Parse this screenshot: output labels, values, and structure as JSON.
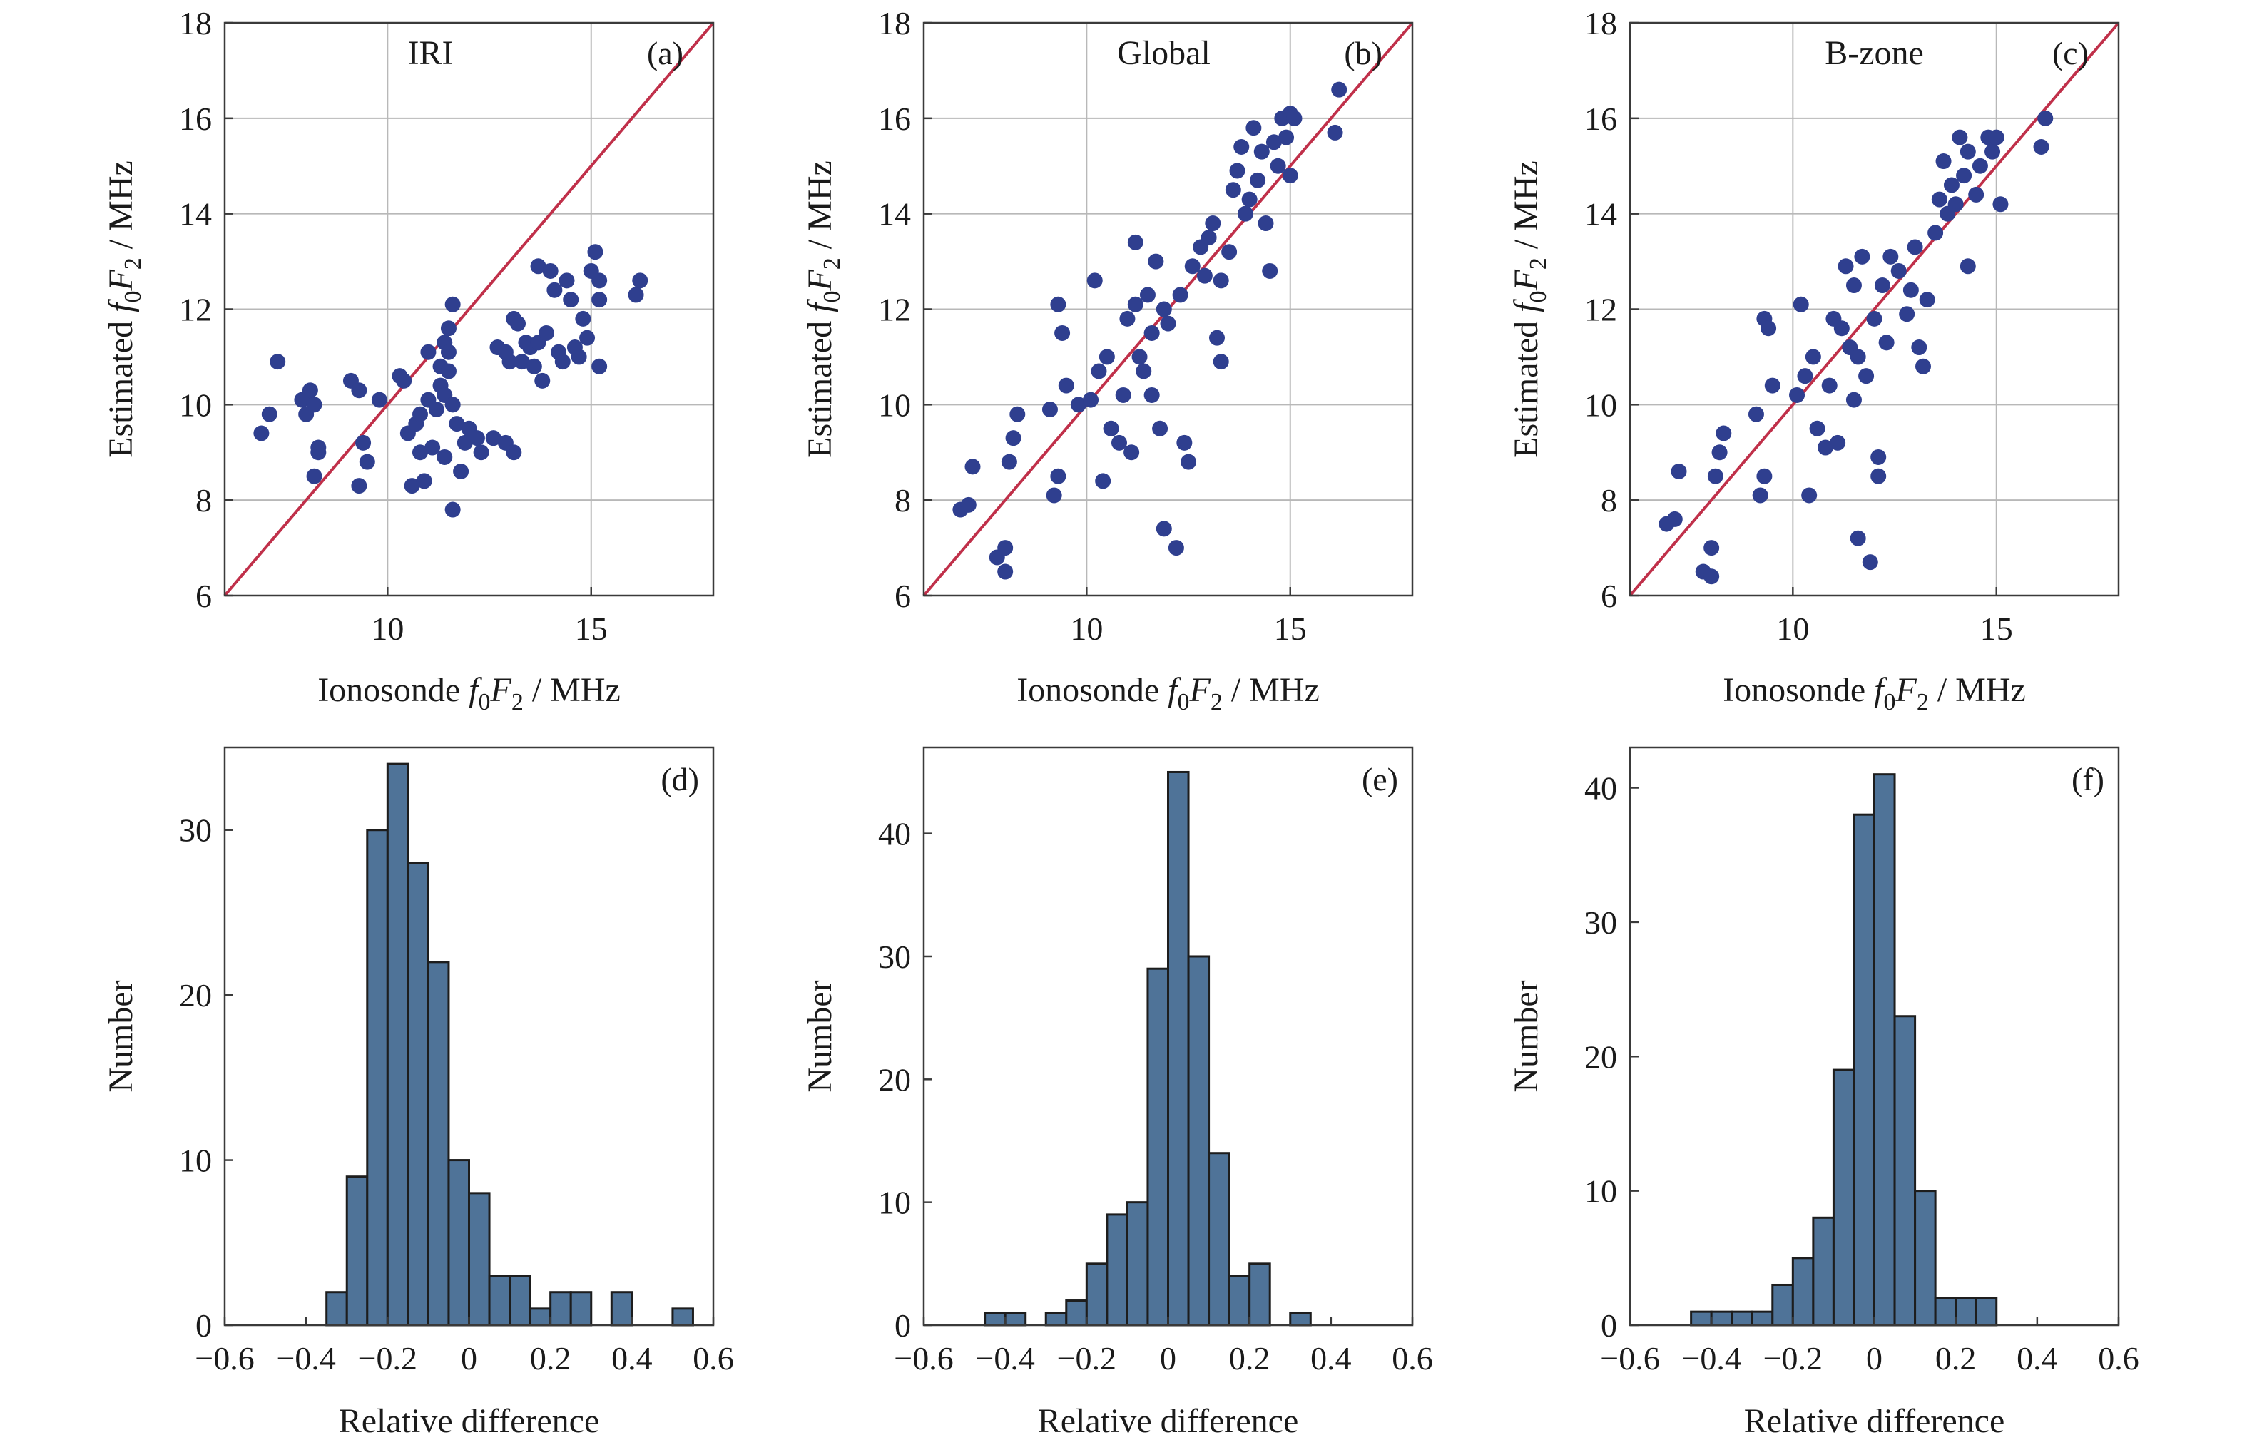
{
  "figure": {
    "scatter_panels": [
      {
        "tag": "(a)",
        "name": "IRI",
        "xlabel_pre": "Ionosonde ",
        "ylabel_pre": "Estimated ",
        "label_var": "f",
        "label_sub1": "0",
        "label_var2": "F",
        "label_sub2": "2",
        "label_unit": " / MHz"
      },
      {
        "tag": "(b)",
        "name": "Global",
        "xlabel_pre": "Ionosonde ",
        "ylabel_pre": "Estimated ",
        "label_var": "f",
        "label_sub1": "0",
        "label_var2": "F",
        "label_sub2": "2",
        "label_unit": " / MHz"
      },
      {
        "tag": "(c)",
        "name": "B-zone",
        "xlabel_pre": "Ionosonde ",
        "ylabel_pre": "Estimated ",
        "label_var": "f",
        "label_sub1": "0",
        "label_var2": "F",
        "label_sub2": "2",
        "label_unit": " / MHz"
      }
    ],
    "hist_panels": [
      {
        "tag": "(d)",
        "xlabel": "Relative difference",
        "ylabel": "Number"
      },
      {
        "tag": "(e)",
        "xlabel": "Relative difference",
        "ylabel": "Number"
      },
      {
        "tag": "(f)",
        "xlabel": "Relative difference",
        "ylabel": "Number"
      }
    ],
    "colors": {
      "points": "#2f3f8f",
      "reference_line": "#c0304a",
      "bars": "#4f7398",
      "bar_edges": "#1d1d1d"
    }
  },
  "chart_data": [
    {
      "type": "scatter",
      "panel": "(a)",
      "title": "IRI",
      "xlabel": "Ionosonde f0F2 / MHz",
      "ylabel": "Estimated f0F2 / MHz",
      "xlim": [
        6,
        18
      ],
      "ylim": [
        6,
        18
      ],
      "xticks": [
        10,
        15
      ],
      "yticks": [
        6,
        8,
        10,
        12,
        14,
        16,
        18
      ],
      "grid": true,
      "reference_line": "y = x",
      "points": [
        [
          6.9,
          9.4
        ],
        [
          7.1,
          9.8
        ],
        [
          7.3,
          10.9
        ],
        [
          7.9,
          10.1
        ],
        [
          8.0,
          9.8
        ],
        [
          8.1,
          10.3
        ],
        [
          8.2,
          10.0
        ],
        [
          8.3,
          9.0
        ],
        [
          8.2,
          8.5
        ],
        [
          8.3,
          9.1
        ],
        [
          9.1,
          10.5
        ],
        [
          9.3,
          10.3
        ],
        [
          9.4,
          9.2
        ],
        [
          9.3,
          8.3
        ],
        [
          9.5,
          8.8
        ],
        [
          9.8,
          10.1
        ],
        [
          10.3,
          10.6
        ],
        [
          10.4,
          10.5
        ],
        [
          10.5,
          9.4
        ],
        [
          10.7,
          9.6
        ],
        [
          10.8,
          9.8
        ],
        [
          10.6,
          8.3
        ],
        [
          10.8,
          9.0
        ],
        [
          10.9,
          8.4
        ],
        [
          11.0,
          10.1
        ],
        [
          11.0,
          11.1
        ],
        [
          11.1,
          9.1
        ],
        [
          11.2,
          9.9
        ],
        [
          11.3,
          10.4
        ],
        [
          11.3,
          10.8
        ],
        [
          11.4,
          11.3
        ],
        [
          11.4,
          10.2
        ],
        [
          11.5,
          11.6
        ],
        [
          11.5,
          11.1
        ],
        [
          11.5,
          10.7
        ],
        [
          11.6,
          12.1
        ],
        [
          11.6,
          10.0
        ],
        [
          11.7,
          9.6
        ],
        [
          11.4,
          8.9
        ],
        [
          11.6,
          7.8
        ],
        [
          11.8,
          8.6
        ],
        [
          11.9,
          9.2
        ],
        [
          12.0,
          9.5
        ],
        [
          12.2,
          9.3
        ],
        [
          12.3,
          9.0
        ],
        [
          12.6,
          9.3
        ],
        [
          12.9,
          9.2
        ],
        [
          13.1,
          9.0
        ],
        [
          12.7,
          11.2
        ],
        [
          12.9,
          11.1
        ],
        [
          13.0,
          10.9
        ],
        [
          13.1,
          11.8
        ],
        [
          13.2,
          11.7
        ],
        [
          13.3,
          10.9
        ],
        [
          13.4,
          11.3
        ],
        [
          13.5,
          11.2
        ],
        [
          13.6,
          10.8
        ],
        [
          13.7,
          11.3
        ],
        [
          13.8,
          10.5
        ],
        [
          13.9,
          11.5
        ],
        [
          13.7,
          12.9
        ],
        [
          14.0,
          12.8
        ],
        [
          14.1,
          12.4
        ],
        [
          14.2,
          11.1
        ],
        [
          14.3,
          10.9
        ],
        [
          14.4,
          12.6
        ],
        [
          14.5,
          12.2
        ],
        [
          14.6,
          11.2
        ],
        [
          14.7,
          11.0
        ],
        [
          14.8,
          11.8
        ],
        [
          14.9,
          11.4
        ],
        [
          15.0,
          12.8
        ],
        [
          15.1,
          13.2
        ],
        [
          15.2,
          12.6
        ],
        [
          15.2,
          12.2
        ],
        [
          15.2,
          10.8
        ],
        [
          16.1,
          12.3
        ],
        [
          16.2,
          12.6
        ]
      ]
    },
    {
      "type": "scatter",
      "panel": "(b)",
      "title": "Global",
      "xlabel": "Ionosonde f0F2 / MHz",
      "ylabel": "Estimated f0F2 / MHz",
      "xlim": [
        6,
        18
      ],
      "ylim": [
        6,
        18
      ],
      "xticks": [
        10,
        15
      ],
      "yticks": [
        6,
        8,
        10,
        12,
        14,
        16,
        18
      ],
      "grid": true,
      "reference_line": "y = x",
      "points": [
        [
          6.9,
          7.8
        ],
        [
          7.1,
          7.9
        ],
        [
          7.2,
          8.7
        ],
        [
          7.8,
          6.8
        ],
        [
          8.0,
          6.5
        ],
        [
          8.0,
          7.0
        ],
        [
          8.1,
          8.8
        ],
        [
          8.2,
          9.3
        ],
        [
          8.3,
          9.8
        ],
        [
          9.1,
          9.9
        ],
        [
          9.2,
          8.1
        ],
        [
          9.3,
          8.5
        ],
        [
          9.3,
          12.1
        ],
        [
          9.4,
          11.5
        ],
        [
          9.5,
          10.4
        ],
        [
          9.8,
          10.0
        ],
        [
          10.1,
          10.1
        ],
        [
          10.2,
          12.6
        ],
        [
          10.3,
          10.7
        ],
        [
          10.4,
          8.4
        ],
        [
          10.5,
          11.0
        ],
        [
          10.6,
          9.5
        ],
        [
          10.8,
          9.2
        ],
        [
          10.9,
          10.2
        ],
        [
          11.0,
          11.8
        ],
        [
          11.1,
          9.0
        ],
        [
          11.2,
          12.1
        ],
        [
          11.2,
          13.4
        ],
        [
          11.3,
          11.0
        ],
        [
          11.4,
          10.7
        ],
        [
          11.5,
          12.3
        ],
        [
          11.6,
          11.5
        ],
        [
          11.6,
          10.2
        ],
        [
          11.7,
          13.0
        ],
        [
          11.8,
          9.5
        ],
        [
          11.9,
          12.0
        ],
        [
          11.9,
          7.4
        ],
        [
          12.0,
          11.7
        ],
        [
          12.2,
          7.0
        ],
        [
          12.3,
          12.3
        ],
        [
          12.4,
          9.2
        ],
        [
          12.5,
          8.8
        ],
        [
          12.6,
          12.9
        ],
        [
          12.8,
          13.3
        ],
        [
          12.9,
          12.7
        ],
        [
          13.0,
          13.5
        ],
        [
          13.1,
          13.8
        ],
        [
          13.2,
          11.4
        ],
        [
          13.3,
          10.9
        ],
        [
          13.3,
          12.6
        ],
        [
          13.5,
          13.2
        ],
        [
          13.6,
          14.5
        ],
        [
          13.7,
          14.9
        ],
        [
          13.8,
          15.4
        ],
        [
          13.9,
          14.0
        ],
        [
          14.0,
          14.3
        ],
        [
          14.1,
          15.8
        ],
        [
          14.2,
          14.7
        ],
        [
          14.3,
          15.3
        ],
        [
          14.4,
          13.8
        ],
        [
          14.5,
          12.8
        ],
        [
          14.6,
          15.5
        ],
        [
          14.7,
          15.0
        ],
        [
          14.8,
          16.0
        ],
        [
          14.9,
          15.6
        ],
        [
          15.0,
          16.1
        ],
        [
          15.0,
          14.8
        ],
        [
          15.1,
          16.0
        ],
        [
          16.2,
          16.6
        ],
        [
          16.1,
          15.7
        ]
      ]
    },
    {
      "type": "scatter",
      "panel": "(c)",
      "title": "B-zone",
      "xlabel": "Ionosonde f0F2 / MHz",
      "ylabel": "Estimated f0F2 / MHz",
      "xlim": [
        6,
        18
      ],
      "ylim": [
        6,
        18
      ],
      "xticks": [
        10,
        15
      ],
      "yticks": [
        6,
        8,
        10,
        12,
        14,
        16,
        18
      ],
      "grid": true,
      "reference_line": "y = x",
      "points": [
        [
          6.9,
          7.5
        ],
        [
          7.1,
          7.6
        ],
        [
          7.2,
          8.6
        ],
        [
          7.8,
          6.5
        ],
        [
          8.0,
          6.4
        ],
        [
          8.0,
          7.0
        ],
        [
          8.1,
          8.5
        ],
        [
          8.2,
          9.0
        ],
        [
          8.3,
          9.4
        ],
        [
          9.1,
          9.8
        ],
        [
          9.2,
          8.1
        ],
        [
          9.3,
          8.5
        ],
        [
          9.3,
          11.8
        ],
        [
          9.4,
          11.6
        ],
        [
          9.5,
          10.4
        ],
        [
          10.1,
          10.2
        ],
        [
          10.2,
          12.1
        ],
        [
          10.3,
          10.6
        ],
        [
          10.4,
          8.1
        ],
        [
          10.5,
          11.0
        ],
        [
          10.6,
          9.5
        ],
        [
          10.8,
          9.1
        ],
        [
          10.9,
          10.4
        ],
        [
          11.0,
          11.8
        ],
        [
          11.1,
          9.2
        ],
        [
          11.2,
          11.6
        ],
        [
          11.3,
          12.9
        ],
        [
          11.4,
          11.2
        ],
        [
          11.5,
          10.1
        ],
        [
          11.5,
          12.5
        ],
        [
          11.6,
          11.0
        ],
        [
          11.6,
          7.2
        ],
        [
          11.7,
          13.1
        ],
        [
          11.8,
          10.6
        ],
        [
          11.9,
          6.7
        ],
        [
          12.0,
          11.8
        ],
        [
          12.1,
          8.9
        ],
        [
          12.1,
          8.5
        ],
        [
          12.2,
          12.5
        ],
        [
          12.3,
          11.3
        ],
        [
          12.4,
          13.1
        ],
        [
          12.6,
          12.8
        ],
        [
          12.8,
          11.9
        ],
        [
          12.9,
          12.4
        ],
        [
          13.0,
          13.3
        ],
        [
          13.1,
          11.2
        ],
        [
          13.2,
          10.8
        ],
        [
          13.3,
          12.2
        ],
        [
          13.5,
          13.6
        ],
        [
          13.6,
          14.3
        ],
        [
          13.7,
          15.1
        ],
        [
          13.8,
          14.0
        ],
        [
          13.9,
          14.6
        ],
        [
          14.0,
          14.2
        ],
        [
          14.1,
          15.6
        ],
        [
          14.2,
          14.8
        ],
        [
          14.3,
          12.9
        ],
        [
          14.3,
          15.3
        ],
        [
          14.5,
          14.4
        ],
        [
          14.6,
          15.0
        ],
        [
          14.8,
          15.6
        ],
        [
          14.9,
          15.3
        ],
        [
          15.0,
          15.6
        ],
        [
          15.1,
          14.2
        ],
        [
          16.1,
          15.4
        ],
        [
          16.2,
          16.0
        ]
      ]
    },
    {
      "type": "bar",
      "panel": "(d)",
      "xlabel": "Relative difference",
      "ylabel": "Number",
      "xlim": [
        -0.6,
        0.6
      ],
      "ylim": [
        0,
        35
      ],
      "xticks": [
        -0.6,
        -0.4,
        -0.2,
        0,
        0.2,
        0.4,
        0.6
      ],
      "xtick_labels": [
        "−0.6",
        "−0.4",
        "−0.2",
        "0",
        "0.2",
        "0.4",
        "0.6"
      ],
      "yticks": [
        0,
        10,
        20,
        30
      ],
      "bin_width": 0.05,
      "bin_left_edges": [
        -0.35,
        -0.3,
        -0.25,
        -0.2,
        -0.15,
        -0.1,
        -0.05,
        0.0,
        0.05,
        0.1,
        0.15,
        0.2,
        0.25,
        0.3,
        0.35,
        0.4,
        0.45,
        0.5
      ],
      "values": [
        2,
        9,
        30,
        34,
        28,
        22,
        10,
        8,
        3,
        3,
        1,
        2,
        2,
        0,
        2,
        0,
        0,
        1
      ]
    },
    {
      "type": "bar",
      "panel": "(e)",
      "xlabel": "Relative difference",
      "ylabel": "Number",
      "xlim": [
        -0.6,
        0.6
      ],
      "ylim": [
        0,
        47
      ],
      "xticks": [
        -0.6,
        -0.4,
        -0.2,
        0,
        0.2,
        0.4,
        0.6
      ],
      "xtick_labels": [
        "−0.6",
        "−0.4",
        "−0.2",
        "0",
        "0.2",
        "0.4",
        "0.6"
      ],
      "yticks": [
        0,
        10,
        20,
        30,
        40
      ],
      "bin_width": 0.05,
      "bin_left_edges": [
        -0.45,
        -0.4,
        -0.35,
        -0.3,
        -0.25,
        -0.2,
        -0.15,
        -0.1,
        -0.05,
        0.0,
        0.05,
        0.1,
        0.15,
        0.2,
        0.25,
        0.3
      ],
      "values": [
        1,
        1,
        0,
        1,
        2,
        5,
        9,
        10,
        29,
        45,
        30,
        14,
        4,
        5,
        0,
        1
      ]
    },
    {
      "type": "bar",
      "panel": "(f)",
      "xlabel": "Relative difference",
      "ylabel": "Number",
      "xlim": [
        -0.6,
        0.6
      ],
      "ylim": [
        0,
        43
      ],
      "xticks": [
        -0.6,
        -0.4,
        -0.2,
        0,
        0.2,
        0.4,
        0.6
      ],
      "xtick_labels": [
        "−0.6",
        "−0.4",
        "−0.2",
        "0",
        "0.2",
        "0.4",
        "0.6"
      ],
      "yticks": [
        0,
        10,
        20,
        30,
        40
      ],
      "bin_width": 0.05,
      "bin_left_edges": [
        -0.45,
        -0.4,
        -0.35,
        -0.3,
        -0.25,
        -0.2,
        -0.15,
        -0.1,
        -0.05,
        0.0,
        0.05,
        0.1,
        0.15,
        0.2,
        0.25
      ],
      "values": [
        1,
        1,
        1,
        1,
        3,
        5,
        8,
        19,
        38,
        41,
        23,
        10,
        2,
        2,
        2
      ]
    }
  ]
}
